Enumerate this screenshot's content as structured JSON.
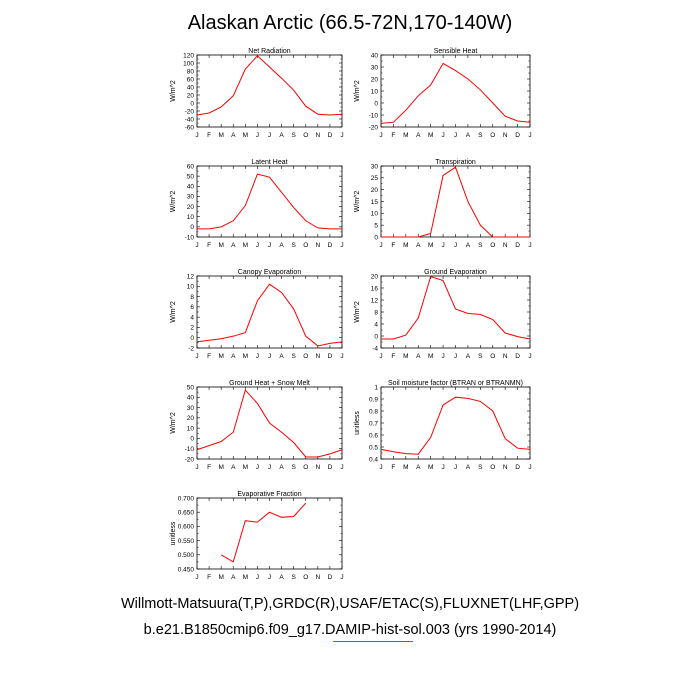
{
  "title": "Alaskan Arctic (66.5-72N,170-140W)",
  "footer": {
    "line1": "Willmott-Matsuura(T,P),GRDC(R),USAF/ETAC(S),FLUXNET(LHF,GPP)",
    "line2": "b.e21.B1850cmip6.f09_g17.DAMIP-hist-sol.003 (yrs 1990-2014)"
  },
  "colors": {
    "series": "#ff0000",
    "axis": "#000000"
  },
  "chart_data": [
    {
      "type": "line",
      "title": "Net Radiation",
      "ylabel": "W/m^2",
      "categories": [
        "J",
        "F",
        "M",
        "A",
        "M",
        "J",
        "J",
        "A",
        "S",
        "O",
        "N",
        "D",
        "J"
      ],
      "ylim": [
        -60,
        120
      ],
      "yticks": [
        -60,
        -40,
        -20,
        0,
        20,
        40,
        60,
        80,
        100,
        120
      ],
      "ytick_labels": [
        "-60",
        "-40",
        "-20",
        "0",
        "20",
        "40",
        "60",
        "80",
        "100",
        "120"
      ],
      "values": [
        -30,
        -25,
        -10,
        18,
        85,
        118,
        90,
        62,
        32,
        -8,
        -28,
        -30,
        -28
      ]
    },
    {
      "type": "line",
      "title": "Sensible Heat",
      "ylabel": "W/m^2",
      "categories": [
        "J",
        "F",
        "M",
        "A",
        "M",
        "J",
        "J",
        "A",
        "S",
        "O",
        "N",
        "D",
        "J"
      ],
      "ylim": [
        -20,
        40
      ],
      "yticks": [
        -20,
        -10,
        0,
        10,
        20,
        30,
        40
      ],
      "ytick_labels": [
        "-20",
        "-10",
        "0",
        "10",
        "20",
        "30",
        "40"
      ],
      "values": [
        -17,
        -16,
        -6,
        6,
        15,
        33,
        27,
        20,
        11,
        0,
        -11,
        -15,
        -16
      ]
    },
    {
      "type": "line",
      "title": "Latent Heat",
      "ylabel": "W/m^2",
      "categories": [
        "J",
        "F",
        "M",
        "A",
        "M",
        "J",
        "J",
        "A",
        "S",
        "O",
        "N",
        "D",
        "J"
      ],
      "ylim": [
        -10,
        60
      ],
      "yticks": [
        -10,
        0,
        10,
        20,
        30,
        40,
        50,
        60
      ],
      "ytick_labels": [
        "-10",
        "0",
        "10",
        "20",
        "30",
        "40",
        "50",
        "60"
      ],
      "values": [
        -2,
        -2,
        0,
        6,
        21,
        52,
        49,
        34,
        19,
        6,
        -1,
        -2,
        -2
      ]
    },
    {
      "type": "line",
      "title": "Transpiration",
      "ylabel": "W/m^2",
      "categories": [
        "J",
        "F",
        "M",
        "A",
        "M",
        "J",
        "J",
        "A",
        "S",
        "O",
        "N",
        "D",
        "J"
      ],
      "ylim": [
        0,
        30
      ],
      "yticks": [
        0,
        5,
        10,
        15,
        20,
        25,
        30
      ],
      "ytick_labels": [
        "0",
        "5",
        "10",
        "15",
        "20",
        "25",
        "30"
      ],
      "values": [
        0,
        0,
        0,
        0,
        1.5,
        26,
        29.5,
        15,
        5,
        0,
        0,
        0,
        0
      ]
    },
    {
      "type": "line",
      "title": "Canopy Evaporation",
      "ylabel": "W/m^2",
      "categories": [
        "J",
        "F",
        "M",
        "A",
        "M",
        "J",
        "J",
        "A",
        "S",
        "O",
        "N",
        "D",
        "J"
      ],
      "ylim": [
        -2,
        12
      ],
      "yticks": [
        -2,
        0,
        2,
        4,
        6,
        8,
        10,
        12
      ],
      "ytick_labels": [
        "-2",
        "0",
        "2",
        "4",
        "6",
        "8",
        "10",
        "12"
      ],
      "values": [
        -0.8,
        -0.5,
        -0.2,
        0.3,
        1,
        7.2,
        10.4,
        8.8,
        5.6,
        0.3,
        -1.6,
        -1.1,
        -0.8
      ]
    },
    {
      "type": "line",
      "title": "Ground Evaporation",
      "ylabel": "W/m^2",
      "categories": [
        "J",
        "F",
        "M",
        "A",
        "M",
        "J",
        "J",
        "A",
        "S",
        "O",
        "N",
        "D",
        "J"
      ],
      "ylim": [
        -4,
        20
      ],
      "yticks": [
        -4,
        0,
        4,
        8,
        12,
        16,
        20
      ],
      "ytick_labels": [
        "-4",
        "0",
        "4",
        "8",
        "12",
        "16",
        "20"
      ],
      "values": [
        -1,
        -1,
        0.3,
        6,
        19.8,
        18.5,
        9,
        7.5,
        7.2,
        5.5,
        1,
        -0.2,
        -1
      ]
    },
    {
      "type": "line",
      "title": "Ground Heat + Snow Melt",
      "ylabel": "W/m^2",
      "categories": [
        "J",
        "F",
        "M",
        "A",
        "M",
        "J",
        "J",
        "A",
        "S",
        "O",
        "N",
        "D",
        "J"
      ],
      "ylim": [
        -20,
        50
      ],
      "yticks": [
        -20,
        -10,
        0,
        10,
        20,
        30,
        40,
        50
      ],
      "ytick_labels": [
        "-20",
        "-10",
        "0",
        "10",
        "20",
        "30",
        "40",
        "50"
      ],
      "values": [
        -11,
        -7,
        -3,
        6,
        47,
        34,
        15,
        6,
        -4,
        -18,
        -18,
        -15,
        -11
      ]
    },
    {
      "type": "line",
      "title": "Soil moisture factor (BTRAN or BTRANMN)",
      "ylabel": "unitless",
      "categories": [
        "J",
        "F",
        "M",
        "A",
        "M",
        "J",
        "J",
        "A",
        "S",
        "O",
        "N",
        "D",
        "J"
      ],
      "ylim": [
        0.4,
        1.0
      ],
      "yticks": [
        0.4,
        0.5,
        0.6,
        0.7,
        0.8,
        0.9,
        1.0
      ],
      "ytick_labels": [
        "0.4",
        "0.5",
        "0.6",
        "0.7",
        "0.8",
        "0.9",
        "1"
      ],
      "values": [
        0.48,
        0.46,
        0.445,
        0.44,
        0.58,
        0.85,
        0.915,
        0.905,
        0.88,
        0.8,
        0.57,
        0.49,
        0.48
      ]
    },
    {
      "type": "line",
      "title": "Evaporative Fraction",
      "ylabel": "unitless",
      "categories": [
        "J",
        "F",
        "M",
        "A",
        "M",
        "J",
        "J",
        "A",
        "S",
        "O",
        "N",
        "D",
        "J"
      ],
      "ylim": [
        0.45,
        0.7
      ],
      "yticks": [
        0.45,
        0.5,
        0.55,
        0.6,
        0.65,
        0.7
      ],
      "ytick_labels": [
        "0.450",
        "0.500",
        "0.550",
        "0.600",
        "0.650",
        "0.700"
      ],
      "values": [
        null,
        null,
        0.5,
        0.475,
        0.62,
        0.615,
        0.65,
        0.632,
        0.635,
        0.682,
        null,
        null,
        null
      ]
    }
  ]
}
